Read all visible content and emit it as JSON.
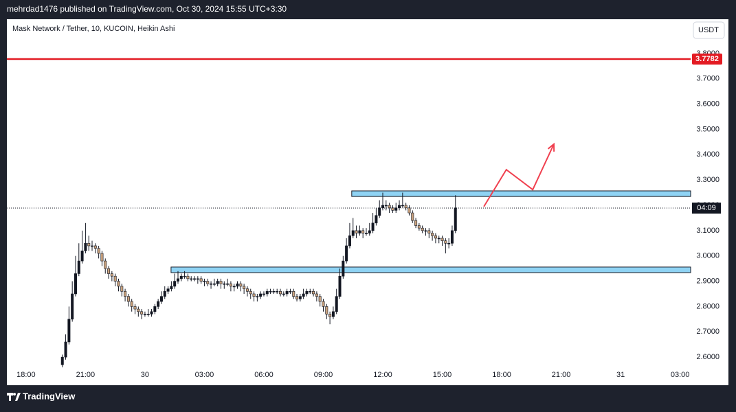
{
  "header": {
    "publisher": "mehrdad1476 published on TradingView.com, Oct 30, 2024 15:55 UTC+3:30"
  },
  "footer": {
    "brand": "TradingView"
  },
  "chart_data": {
    "type": "candlestick",
    "title": "Mask Network / Tether, 10, KUCOIN, Heikin Ashi",
    "currency": "USDT",
    "up_color": "#131722",
    "down_color": "#c9a27e",
    "xlim": [
      -58,
      2012
    ],
    "xticks": [
      {
        "value": 0,
        "label": "18:00"
      },
      {
        "value": 180,
        "label": "21:00"
      },
      {
        "value": 360,
        "label": "30"
      },
      {
        "value": 540,
        "label": "03:00"
      },
      {
        "value": 720,
        "label": "06:00"
      },
      {
        "value": 900,
        "label": "09:00"
      },
      {
        "value": 1080,
        "label": "12:00"
      },
      {
        "value": 1260,
        "label": "15:00"
      },
      {
        "value": 1440,
        "label": "18:00"
      },
      {
        "value": 1620,
        "label": "21:00"
      },
      {
        "value": 1800,
        "label": "31"
      },
      {
        "value": 1980,
        "label": "03:00"
      }
    ],
    "ylim": [
      2.565,
      3.93
    ],
    "yticks": [
      {
        "value": 2.6,
        "label": "2.6000"
      },
      {
        "value": 2.7,
        "label": "2.7000"
      },
      {
        "value": 2.8,
        "label": "2.8000"
      },
      {
        "value": 2.9,
        "label": "2.9000"
      },
      {
        "value": 3.0,
        "label": "3.0000"
      },
      {
        "value": 3.1,
        "label": "3.1000"
      },
      {
        "value": 3.2,
        "label": "3.2000"
      },
      {
        "value": 3.3,
        "label": "3.3000"
      },
      {
        "value": 3.4,
        "label": "3.4000"
      },
      {
        "value": 3.5,
        "label": "3.5000"
      },
      {
        "value": 3.6,
        "label": "3.6000"
      },
      {
        "value": 3.7,
        "label": "3.7000"
      },
      {
        "value": 3.8,
        "label": "3.8000"
      }
    ],
    "x": [
      110,
      120,
      130,
      140,
      150,
      160,
      170,
      180,
      190,
      200,
      210,
      220,
      230,
      240,
      250,
      260,
      270,
      280,
      290,
      300,
      310,
      320,
      330,
      340,
      350,
      360,
      370,
      380,
      390,
      400,
      410,
      420,
      430,
      440,
      450,
      460,
      470,
      480,
      490,
      500,
      510,
      520,
      530,
      540,
      550,
      560,
      570,
      580,
      590,
      600,
      610,
      620,
      630,
      640,
      650,
      660,
      670,
      680,
      690,
      700,
      710,
      720,
      730,
      740,
      750,
      760,
      770,
      780,
      790,
      800,
      810,
      820,
      830,
      840,
      850,
      860,
      870,
      880,
      890,
      900,
      910,
      920,
      930,
      940,
      950,
      960,
      970,
      980,
      990,
      1000,
      1010,
      1020,
      1030,
      1040,
      1050,
      1060,
      1070,
      1080,
      1090,
      1100,
      1110,
      1120,
      1130,
      1140,
      1150,
      1160,
      1170,
      1180,
      1190,
      1200,
      1210,
      1220,
      1230,
      1240,
      1250,
      1260,
      1270,
      1280,
      1290,
      1300
    ],
    "open": [
      2.57,
      2.6,
      2.66,
      2.75,
      2.85,
      2.93,
      2.98,
      3.02,
      3.05,
      3.04,
      3.04,
      3.03,
      3.01,
      2.98,
      2.95,
      2.93,
      2.92,
      2.9,
      2.88,
      2.86,
      2.84,
      2.82,
      2.8,
      2.79,
      2.78,
      2.77,
      2.77,
      2.77,
      2.78,
      2.8,
      2.82,
      2.84,
      2.86,
      2.87,
      2.88,
      2.9,
      2.91,
      2.92,
      2.92,
      2.91,
      2.91,
      2.91,
      2.91,
      2.9,
      2.9,
      2.89,
      2.89,
      2.89,
      2.9,
      2.89,
      2.89,
      2.89,
      2.88,
      2.88,
      2.89,
      2.88,
      2.87,
      2.86,
      2.85,
      2.84,
      2.84,
      2.85,
      2.85,
      2.86,
      2.86,
      2.86,
      2.86,
      2.85,
      2.85,
      2.86,
      2.86,
      2.84,
      2.83,
      2.84,
      2.85,
      2.86,
      2.86,
      2.85,
      2.84,
      2.82,
      2.8,
      2.77,
      2.76,
      2.78,
      2.84,
      2.92,
      2.98,
      3.04,
      3.08,
      3.1,
      3.09,
      3.1,
      3.09,
      3.09,
      3.1,
      3.13,
      3.16,
      3.19,
      3.2,
      3.2,
      3.19,
      3.18,
      3.19,
      3.2,
      3.2,
      3.19,
      3.17,
      3.14,
      3.12,
      3.11,
      3.1,
      3.1,
      3.09,
      3.08,
      3.07,
      3.07,
      3.06,
      3.05,
      3.05,
      3.1
    ],
    "high": [
      2.61,
      2.69,
      2.8,
      2.9,
      3.0,
      3.05,
      3.1,
      3.13,
      3.08,
      3.06,
      3.05,
      3.04,
      3.02,
      2.99,
      2.96,
      2.94,
      2.93,
      2.91,
      2.89,
      2.87,
      2.85,
      2.83,
      2.81,
      2.8,
      2.79,
      2.78,
      2.79,
      2.79,
      2.81,
      2.83,
      2.86,
      2.88,
      2.88,
      2.9,
      2.93,
      2.94,
      2.93,
      2.94,
      2.93,
      2.92,
      2.92,
      2.92,
      2.92,
      2.91,
      2.91,
      2.9,
      2.91,
      2.91,
      2.91,
      2.9,
      2.91,
      2.9,
      2.89,
      2.9,
      2.9,
      2.89,
      2.88,
      2.87,
      2.86,
      2.85,
      2.86,
      2.86,
      2.87,
      2.87,
      2.87,
      2.87,
      2.87,
      2.86,
      2.87,
      2.87,
      2.87,
      2.85,
      2.85,
      2.87,
      2.87,
      2.87,
      2.87,
      2.86,
      2.85,
      2.83,
      2.81,
      2.78,
      2.8,
      2.87,
      2.95,
      3.0,
      3.07,
      3.13,
      3.15,
      3.12,
      3.12,
      3.11,
      3.11,
      3.13,
      3.17,
      3.19,
      3.22,
      3.25,
      3.22,
      3.21,
      3.2,
      3.21,
      3.22,
      3.25,
      3.21,
      3.2,
      3.18,
      3.15,
      3.13,
      3.12,
      3.11,
      3.11,
      3.1,
      3.09,
      3.08,
      3.08,
      3.07,
      3.07,
      3.12,
      3.24
    ],
    "low": [
      2.56,
      2.59,
      2.65,
      2.74,
      2.84,
      2.92,
      2.97,
      3.01,
      3.02,
      3.02,
      3.01,
      2.99,
      2.96,
      2.93,
      2.91,
      2.9,
      2.88,
      2.86,
      2.84,
      2.82,
      2.8,
      2.78,
      2.77,
      2.76,
      2.75,
      2.76,
      2.76,
      2.76,
      2.77,
      2.79,
      2.81,
      2.83,
      2.85,
      2.86,
      2.87,
      2.89,
      2.9,
      2.91,
      2.9,
      2.9,
      2.9,
      2.89,
      2.89,
      2.88,
      2.88,
      2.87,
      2.88,
      2.88,
      2.87,
      2.87,
      2.88,
      2.86,
      2.86,
      2.87,
      2.86,
      2.85,
      2.84,
      2.83,
      2.82,
      2.82,
      2.83,
      2.84,
      2.84,
      2.85,
      2.85,
      2.85,
      2.84,
      2.84,
      2.84,
      2.85,
      2.83,
      2.82,
      2.82,
      2.83,
      2.84,
      2.85,
      2.84,
      2.82,
      2.8,
      2.78,
      2.75,
      2.73,
      2.75,
      2.77,
      2.83,
      2.91,
      2.97,
      3.03,
      3.07,
      3.07,
      3.08,
      3.07,
      3.08,
      3.08,
      3.09,
      3.12,
      3.15,
      3.18,
      3.18,
      3.17,
      3.17,
      3.17,
      3.18,
      3.19,
      3.18,
      3.16,
      3.13,
      3.11,
      3.1,
      3.09,
      3.08,
      3.07,
      3.06,
      3.05,
      3.05,
      3.04,
      3.01,
      3.03,
      3.04,
      3.09
    ],
    "close": [
      2.6,
      2.66,
      2.75,
      2.85,
      2.93,
      2.98,
      3.02,
      3.05,
      3.04,
      3.04,
      3.03,
      3.01,
      2.98,
      2.95,
      2.93,
      2.92,
      2.9,
      2.88,
      2.86,
      2.84,
      2.82,
      2.8,
      2.79,
      2.78,
      2.77,
      2.77,
      2.77,
      2.78,
      2.8,
      2.82,
      2.84,
      2.86,
      2.87,
      2.88,
      2.9,
      2.91,
      2.92,
      2.92,
      2.91,
      2.91,
      2.91,
      2.91,
      2.9,
      2.9,
      2.89,
      2.89,
      2.89,
      2.9,
      2.89,
      2.89,
      2.89,
      2.88,
      2.88,
      2.89,
      2.88,
      2.87,
      2.86,
      2.85,
      2.84,
      2.84,
      2.85,
      2.85,
      2.86,
      2.86,
      2.86,
      2.86,
      2.85,
      2.85,
      2.86,
      2.86,
      2.84,
      2.83,
      2.84,
      2.85,
      2.86,
      2.86,
      2.85,
      2.84,
      2.82,
      2.8,
      2.77,
      2.76,
      2.78,
      2.84,
      2.92,
      2.98,
      3.04,
      3.08,
      3.1,
      3.09,
      3.1,
      3.09,
      3.09,
      3.1,
      3.13,
      3.16,
      3.19,
      3.2,
      3.2,
      3.19,
      3.18,
      3.19,
      3.2,
      3.2,
      3.19,
      3.17,
      3.14,
      3.12,
      3.11,
      3.1,
      3.1,
      3.09,
      3.08,
      3.07,
      3.07,
      3.06,
      3.05,
      3.05,
      3.1,
      3.19
    ],
    "alert_line": {
      "value": 3.7782,
      "color": "#e31b23"
    },
    "countdown": {
      "value": 3.189,
      "label": "04:09"
    },
    "zones": [
      {
        "top": 3.257,
        "bottom": 3.235,
        "x_start": 986,
        "color": "#8fd3f4"
      },
      {
        "top": 2.956,
        "bottom": 2.934,
        "x_start": 439,
        "color": "#8fd3f4"
      }
    ],
    "arrow": {
      "color": "#f0404f",
      "x": [
        1386,
        1454,
        1534,
        1598
      ],
      "y": [
        3.195,
        3.341,
        3.262,
        3.442
      ]
    }
  }
}
